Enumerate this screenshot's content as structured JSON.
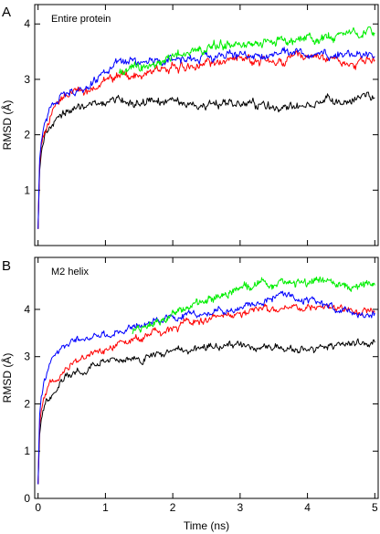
{
  "chart_data": [
    {
      "type": "line",
      "panel_label": "A",
      "annotation": "Entire protein",
      "xlabel": "",
      "ylabel": "RMSD (Å)",
      "xlim": [
        -0.05,
        5.05
      ],
      "ylim": [
        0,
        4.35
      ],
      "xticks": [
        0,
        1,
        2,
        3,
        4,
        5
      ],
      "yticks": [
        1,
        2,
        3,
        4
      ],
      "xtick_labels": [
        "",
        "",
        "",
        "",
        "",
        ""
      ],
      "ytick_labels": [
        "1",
        "2",
        "3",
        "4"
      ],
      "grid": false,
      "legend": "none",
      "series": [
        {
          "color": "#000000",
          "x": [
            0,
            0.02,
            0.05,
            0.1,
            0.15,
            0.2,
            0.3,
            0.4,
            0.5,
            0.6,
            0.7,
            0.8,
            0.9,
            1.0,
            1.1,
            1.2,
            1.3,
            1.5,
            1.7,
            2.0,
            2.2,
            2.5,
            2.8,
            3.0,
            3.2,
            3.5,
            3.7,
            4.0,
            4.2,
            4.5,
            4.7,
            4.9,
            5.0
          ],
          "y": [
            0.3,
            1.3,
            1.7,
            1.95,
            2.1,
            2.2,
            2.3,
            2.35,
            2.45,
            2.5,
            2.5,
            2.55,
            2.6,
            2.6,
            2.62,
            2.65,
            2.6,
            2.6,
            2.55,
            2.6,
            2.55,
            2.5,
            2.55,
            2.6,
            2.55,
            2.5,
            2.5,
            2.55,
            2.6,
            2.6,
            2.65,
            2.7,
            2.7
          ]
        },
        {
          "color": "#ff0000",
          "x": [
            0,
            0.02,
            0.05,
            0.1,
            0.15,
            0.2,
            0.3,
            0.4,
            0.5,
            0.6,
            0.7,
            0.8,
            0.9,
            1.0,
            1.1,
            1.2,
            1.3,
            1.5,
            1.7,
            2.0,
            2.2,
            2.5,
            2.8,
            3.0,
            3.2,
            3.5,
            3.7,
            4.0,
            4.2,
            4.5,
            4.7,
            4.9,
            5.0
          ],
          "y": [
            0.3,
            1.4,
            1.85,
            2.1,
            2.3,
            2.45,
            2.6,
            2.7,
            2.75,
            2.8,
            2.8,
            2.85,
            2.9,
            2.95,
            3.0,
            3.0,
            3.05,
            3.1,
            3.15,
            3.2,
            3.25,
            3.3,
            3.35,
            3.4,
            3.35,
            3.4,
            3.3,
            3.4,
            3.4,
            3.35,
            3.35,
            3.4,
            3.4
          ]
        },
        {
          "color": "#0000ff",
          "x": [
            0,
            0.02,
            0.05,
            0.1,
            0.15,
            0.2,
            0.3,
            0.4,
            0.5,
            0.6,
            0.7,
            0.8,
            0.9,
            1.0,
            1.1,
            1.2,
            1.3,
            1.5,
            1.7,
            2.0,
            2.2,
            2.5,
            2.8,
            3.0,
            3.2,
            3.5,
            3.7,
            4.0,
            4.2,
            4.5,
            4.7,
            4.9,
            5.0
          ],
          "y": [
            0.3,
            1.5,
            1.9,
            2.2,
            2.4,
            2.5,
            2.65,
            2.75,
            2.8,
            2.8,
            2.85,
            2.9,
            3.0,
            3.1,
            3.2,
            3.3,
            3.25,
            3.3,
            3.3,
            3.35,
            3.35,
            3.4,
            3.45,
            3.45,
            3.4,
            3.45,
            3.5,
            3.45,
            3.4,
            3.45,
            3.45,
            3.5,
            3.45
          ]
        },
        {
          "color": "#00ee00",
          "x": [
            1.2,
            1.3,
            1.4,
            1.5,
            1.6,
            1.7,
            1.8,
            1.9,
            2.0,
            2.2,
            2.4,
            2.6,
            2.8,
            3.0,
            3.2,
            3.4,
            3.6,
            3.8,
            4.0,
            4.2,
            4.4,
            4.6,
            4.8,
            4.9,
            5.0
          ],
          "y": [
            3.1,
            3.15,
            3.25,
            3.2,
            3.2,
            3.25,
            3.3,
            3.4,
            3.45,
            3.5,
            3.55,
            3.6,
            3.6,
            3.65,
            3.6,
            3.65,
            3.7,
            3.7,
            3.75,
            3.75,
            3.8,
            3.8,
            3.8,
            3.85,
            3.85
          ]
        }
      ]
    },
    {
      "type": "line",
      "panel_label": "B",
      "annotation": "M2 helix",
      "xlabel": "Time (ns)",
      "ylabel": "RMSD (Å)",
      "xlim": [
        -0.05,
        5.05
      ],
      "ylim": [
        0,
        5.1
      ],
      "xticks": [
        0,
        1,
        2,
        3,
        4,
        5
      ],
      "yticks": [
        0,
        1,
        2,
        3,
        4
      ],
      "xtick_labels": [
        "0",
        "1",
        "2",
        "3",
        "4",
        "5"
      ],
      "ytick_labels": [
        "0",
        "1",
        "2",
        "3",
        "4"
      ],
      "grid": false,
      "legend": "none",
      "series": [
        {
          "color": "#000000",
          "x": [
            0,
            0.02,
            0.05,
            0.1,
            0.15,
            0.2,
            0.3,
            0.4,
            0.5,
            0.6,
            0.7,
            0.8,
            0.9,
            1.0,
            1.2,
            1.4,
            1.6,
            1.8,
            2.0,
            2.2,
            2.4,
            2.6,
            2.8,
            3.0,
            3.2,
            3.4,
            3.6,
            3.8,
            4.0,
            4.2,
            4.4,
            4.6,
            4.8,
            5.0
          ],
          "y": [
            0.3,
            1.3,
            1.7,
            1.95,
            2.1,
            2.25,
            2.4,
            2.55,
            2.65,
            2.7,
            2.75,
            2.8,
            2.85,
            2.9,
            2.9,
            2.95,
            3.0,
            3.05,
            3.1,
            3.1,
            3.15,
            3.2,
            3.2,
            3.25,
            3.2,
            3.2,
            3.15,
            3.15,
            3.2,
            3.2,
            3.25,
            3.25,
            3.25,
            3.3
          ]
        },
        {
          "color": "#ff0000",
          "x": [
            0,
            0.02,
            0.05,
            0.1,
            0.15,
            0.2,
            0.3,
            0.4,
            0.5,
            0.6,
            0.7,
            0.8,
            0.9,
            1.0,
            1.2,
            1.4,
            1.6,
            1.8,
            2.0,
            2.2,
            2.4,
            2.6,
            2.8,
            3.0,
            3.2,
            3.4,
            3.6,
            3.8,
            4.0,
            4.2,
            4.4,
            4.6,
            4.8,
            5.0
          ],
          "y": [
            0.3,
            1.5,
            1.9,
            2.15,
            2.3,
            2.45,
            2.6,
            2.75,
            2.85,
            2.95,
            3.0,
            3.05,
            3.1,
            3.15,
            3.25,
            3.35,
            3.45,
            3.55,
            3.6,
            3.7,
            3.75,
            3.8,
            3.85,
            3.9,
            3.95,
            4.0,
            4.0,
            4.05,
            4.05,
            4.05,
            4.0,
            4.0,
            3.95,
            4.0
          ]
        },
        {
          "color": "#0000ff",
          "x": [
            0,
            0.02,
            0.05,
            0.1,
            0.15,
            0.2,
            0.3,
            0.4,
            0.5,
            0.6,
            0.7,
            0.8,
            0.9,
            1.0,
            1.2,
            1.4,
            1.6,
            1.8,
            2.0,
            2.2,
            2.4,
            2.6,
            2.8,
            3.0,
            3.2,
            3.4,
            3.6,
            3.8,
            4.0,
            4.2,
            4.4,
            4.6,
            4.8,
            5.0
          ],
          "y": [
            0.3,
            1.7,
            2.2,
            2.55,
            2.75,
            2.9,
            3.1,
            3.25,
            3.3,
            3.35,
            3.35,
            3.4,
            3.45,
            3.45,
            3.5,
            3.6,
            3.7,
            3.75,
            3.8,
            3.85,
            3.9,
            3.95,
            4.0,
            4.05,
            4.1,
            4.2,
            4.3,
            4.25,
            4.2,
            4.15,
            4.05,
            4.0,
            3.9,
            3.9
          ]
        },
        {
          "color": "#00ee00",
          "x": [
            1.4,
            1.5,
            1.6,
            1.7,
            1.8,
            1.9,
            2.0,
            2.2,
            2.4,
            2.6,
            2.8,
            3.0,
            3.2,
            3.4,
            3.6,
            3.8,
            4.0,
            4.2,
            4.4,
            4.6,
            4.8,
            4.9,
            5.0
          ],
          "y": [
            3.55,
            3.6,
            3.65,
            3.7,
            3.75,
            3.8,
            3.9,
            4.0,
            4.1,
            4.2,
            4.35,
            4.5,
            4.5,
            4.55,
            4.55,
            4.6,
            4.55,
            4.6,
            4.55,
            4.5,
            4.5,
            4.55,
            4.55
          ]
        }
      ]
    }
  ]
}
